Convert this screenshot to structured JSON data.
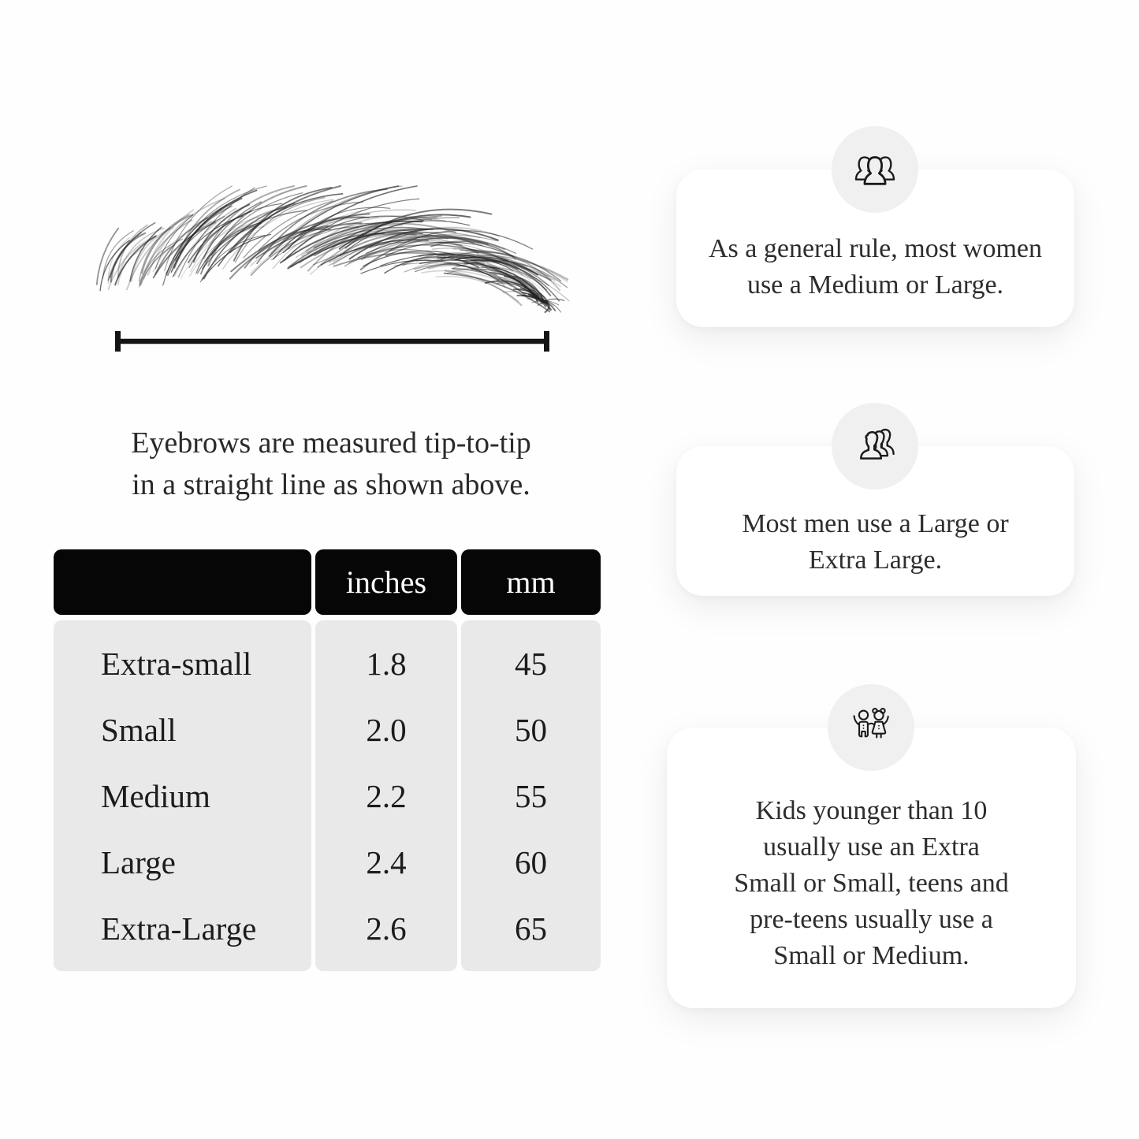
{
  "page": {
    "background": "#fefefe"
  },
  "colors": {
    "table_header_bg": "#060606",
    "table_header_text": "#ffffff",
    "table_body_bg": "#e9e9e9",
    "card_bg": "#ffffff",
    "icon_circle_bg": "#f0f0f0",
    "text": "#1f1f1f"
  },
  "eyebrow_figure": {
    "illustration": "hand-drawn eyebrow measured tip-to-tip",
    "caption_lines": [
      "Eyebrows are measured tip-to-tip",
      "in a straight line as shown above."
    ]
  },
  "size_table": {
    "headers": [
      "",
      "inches",
      "mm"
    ],
    "rows": [
      {
        "size": "Extra-small",
        "inches": "1.8",
        "mm": "45"
      },
      {
        "size": "Small",
        "inches": "2.0",
        "mm": "50"
      },
      {
        "size": "Medium",
        "inches": "2.2",
        "mm": "55"
      },
      {
        "size": "Large",
        "inches": "2.4",
        "mm": "60"
      },
      {
        "size": "Extra-Large",
        "inches": "2.6",
        "mm": "65"
      }
    ]
  },
  "info_cards": [
    {
      "icon": "women-group-icon",
      "lines": [
        "As a general rule, most women",
        "use a Medium or Large."
      ]
    },
    {
      "icon": "men-group-icon",
      "lines": [
        "Most men use a Large or",
        "Extra Large."
      ]
    },
    {
      "icon": "children-icon",
      "lines": [
        "Kids younger than 10",
        "usually use an Extra",
        "Small or Small, teens and",
        "pre-teens usually use a",
        "Small or Medium."
      ]
    }
  ]
}
